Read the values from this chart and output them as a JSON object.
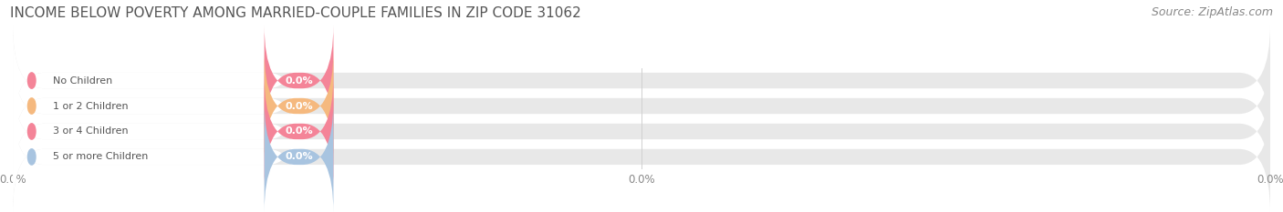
{
  "title": "INCOME BELOW POVERTY AMONG MARRIED-COUPLE FAMILIES IN ZIP CODE 31062",
  "source": "Source: ZipAtlas.com",
  "categories": [
    "No Children",
    "1 or 2 Children",
    "3 or 4 Children",
    "5 or more Children"
  ],
  "values": [
    0.0,
    0.0,
    0.0,
    0.0
  ],
  "bar_colors": [
    "#f48498",
    "#f5b97f",
    "#f48498",
    "#a8c4e0"
  ],
  "bar_bg_color": "#e8e8e8",
  "text_color": "#555555",
  "value_label": "0.0%",
  "xlim": [
    0,
    100
  ],
  "background_color": "#ffffff",
  "title_fontsize": 11,
  "source_fontsize": 9,
  "bar_label_fontsize": 8,
  "value_fontsize": 8,
  "tick_fontsize": 8.5,
  "figsize": [
    14.06,
    2.33
  ],
  "dpi": 100
}
